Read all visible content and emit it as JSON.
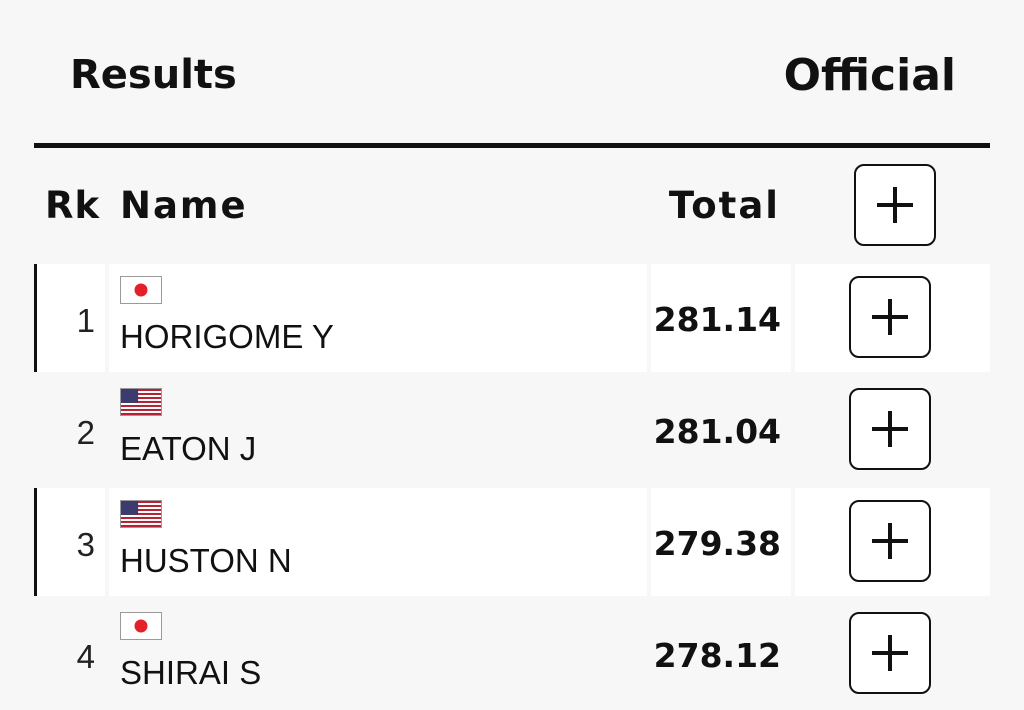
{
  "header": {
    "title": "Results",
    "status": "Official"
  },
  "columns": {
    "rank": "Rk",
    "name": "Name",
    "total": "Total"
  },
  "rows": [
    {
      "rank": "1",
      "name": "HORIGOME Y",
      "flag": "japan-flag-icon",
      "total": "281.14"
    },
    {
      "rank": "2",
      "name": "EATON J",
      "flag": "usa-flag-icon",
      "total": "281.04"
    },
    {
      "rank": "3",
      "name": "HUSTON N",
      "flag": "usa-flag-icon",
      "total": "279.38"
    },
    {
      "rank": "4",
      "name": "SHIRAI S",
      "flag": "japan-flag-icon",
      "total": "278.12"
    }
  ],
  "icons": {
    "expand": "plus-icon"
  },
  "colors": {
    "text": "#111111",
    "background": "#f7f7f7",
    "row_highlight": "#ffffff",
    "japan_red": "#e4212b",
    "usa_red": "#b22234",
    "usa_blue": "#3c3b6e"
  }
}
